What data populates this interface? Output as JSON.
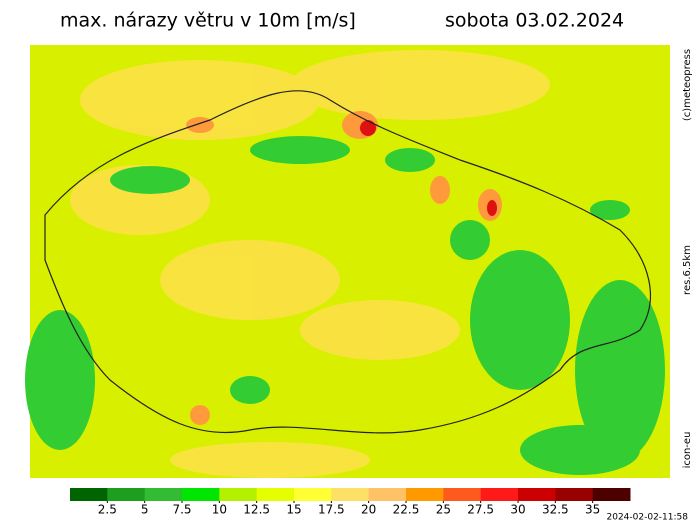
{
  "header": {
    "title": "max. nárazy větru v 10m [m/s]",
    "date": "sobota 03.02.2024"
  },
  "side_labels": {
    "copyright": "(c)meteopress",
    "resolution": "res.6.5km",
    "model": "icon-eu"
  },
  "legend": {
    "ticks": [
      2.5,
      5,
      7.5,
      10,
      12.5,
      15,
      17.5,
      20,
      22.5,
      25,
      27.5,
      30,
      32.5,
      35
    ],
    "colors": [
      "#006400",
      "#1e9e1e",
      "#33bb33",
      "#00e600",
      "#b4f000",
      "#e6ff00",
      "#ffff33",
      "#ffe066",
      "#ffc266",
      "#ff9900",
      "#ff5a1e",
      "#ff1a1a",
      "#cc0000",
      "#990000",
      "#4d0000"
    ]
  },
  "timestamp": "2024-02-02-11:58"
}
